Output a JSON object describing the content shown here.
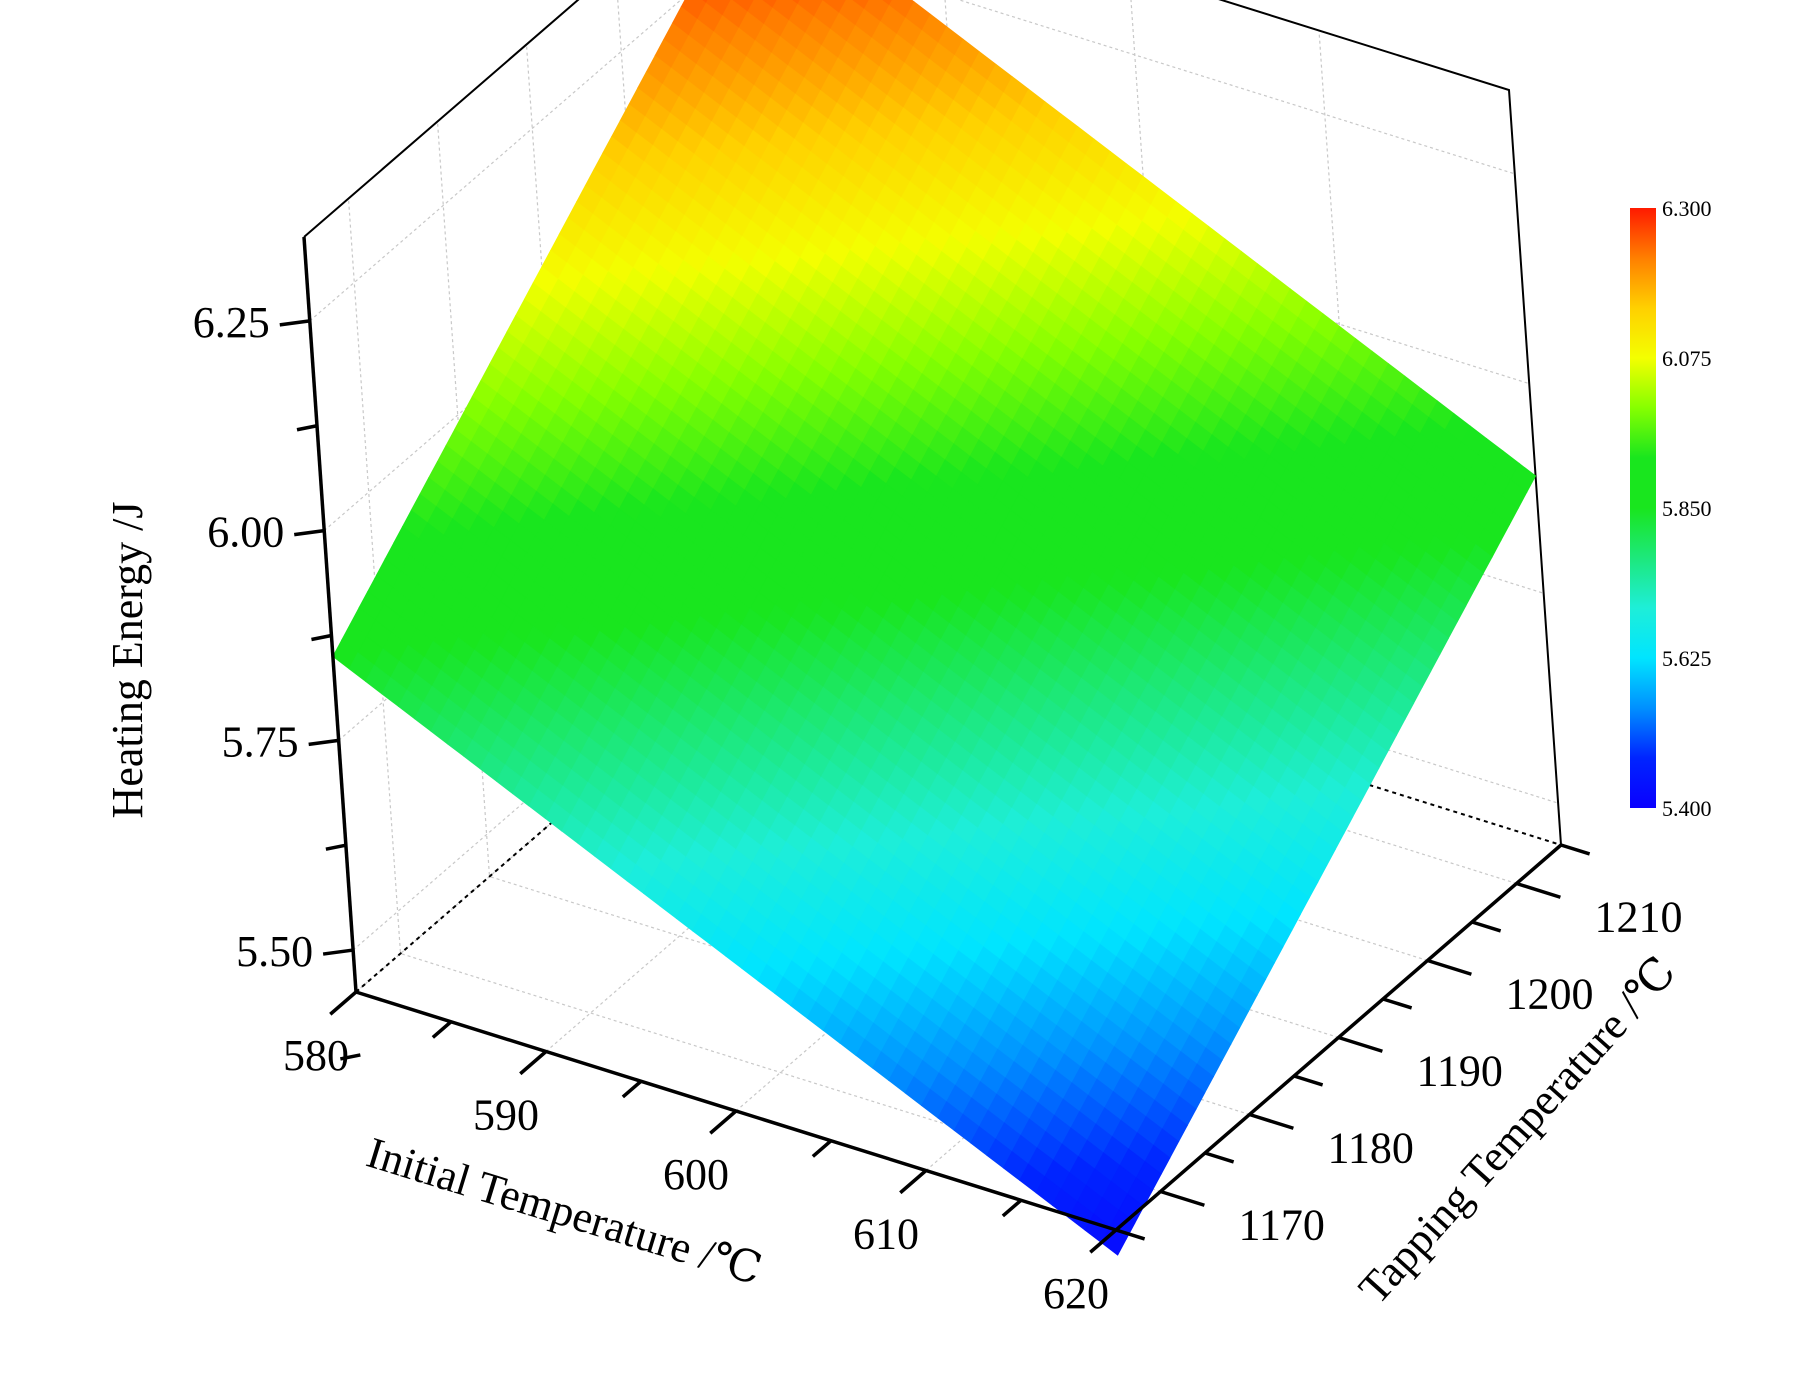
{
  "chart_data": {
    "type": "surface",
    "x_axis": {
      "label": "Initial Temperature  /℃",
      "ticks": [
        580,
        590,
        600,
        610,
        620
      ],
      "range": [
        580,
        620
      ]
    },
    "y_axis": {
      "label": "Tapping Temperature /℃",
      "ticks": [
        1170,
        1180,
        1190,
        1200,
        1210
      ],
      "range": [
        1165,
        1215
      ]
    },
    "z_axis": {
      "label": "Heating Energy  /J",
      "ticks": [
        "5.50",
        "5.75",
        "6.00",
        "6.25"
      ],
      "range": [
        5.45,
        6.35
      ]
    },
    "surface": {
      "corners": [
        {
          "x": 580,
          "y": 1165,
          "z": 5.85
        },
        {
          "x": 580,
          "y": 1215,
          "z": 6.32
        },
        {
          "x": 620,
          "y": 1215,
          "z": 5.89
        },
        {
          "x": 620,
          "y": 1165,
          "z": 5.42
        }
      ]
    },
    "colorbar": {
      "min": 5.4,
      "max": 6.3,
      "tick_labels": [
        "6.300",
        "6.075",
        "5.850",
        "5.625",
        "5.400"
      ],
      "colors": [
        "#ff1a00",
        "#ff7f00",
        "#ffd000",
        "#f4ff00",
        "#86ff00",
        "#19e61e",
        "#19e61e",
        "#1de87c",
        "#1eeed8",
        "#00e5ff",
        "#0090ff",
        "#0024ff",
        "#0a00ff"
      ]
    },
    "grid": true
  }
}
